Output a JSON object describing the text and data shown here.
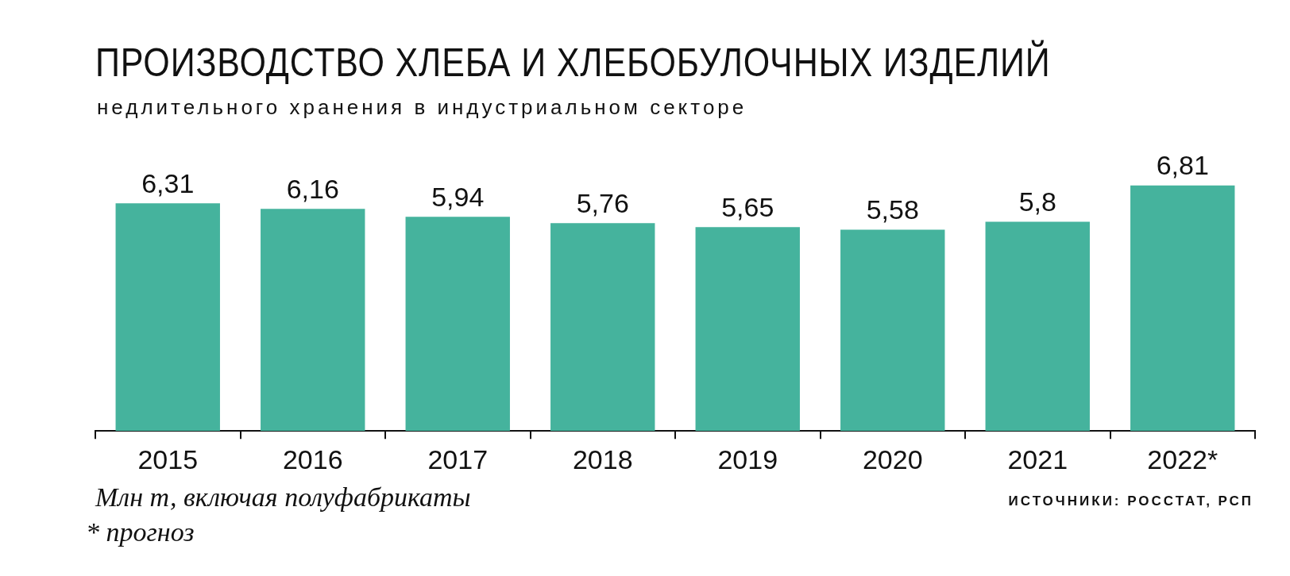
{
  "chart_data": {
    "type": "bar",
    "title": "ПРОИЗВОДСТВО ХЛЕБА И ХЛЕБОБУЛОЧНЫХ ИЗДЕЛИЙ",
    "subtitle": "недлительного хранения в индустриальном секторе",
    "categories": [
      "2015",
      "2016",
      "2017",
      "2018",
      "2019",
      "2020",
      "2021",
      "2022*"
    ],
    "values": [
      6.31,
      6.16,
      5.94,
      5.76,
      5.65,
      5.58,
      5.8,
      6.81
    ],
    "color": "#45b39d",
    "value_labels": [
      "6,31",
      "6,16",
      "5,94",
      "5,76",
      "5,65",
      "5,58",
      "5,8",
      "6,81"
    ],
    "annotations": [
      "Млн т, включая полуфабрикаты",
      "* прогноз",
      "ИСТОЧНИКИ: РОССТАТ, РСП"
    ]
  }
}
